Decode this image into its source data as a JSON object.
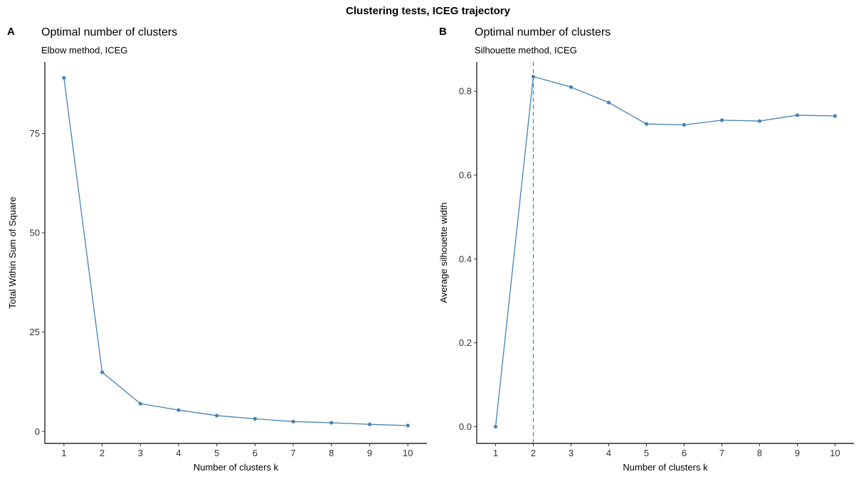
{
  "figure": {
    "title": "Clustering tests, ICEG trajectory"
  },
  "panels": [
    {
      "tag": "A",
      "title": "Optimal number of clusters",
      "subtitle": "Elbow method, ICEG"
    },
    {
      "tag": "B",
      "title": "Optimal number of clusters",
      "subtitle": "Silhouette method, ICEG"
    }
  ],
  "colors": {
    "series": "#4682B4",
    "axis": "#000000"
  },
  "chart_data": [
    {
      "type": "line",
      "x": [
        1,
        2,
        3,
        4,
        5,
        6,
        7,
        8,
        9,
        10
      ],
      "values": [
        89.0,
        14.9,
        7.0,
        5.4,
        4.0,
        3.2,
        2.5,
        2.2,
        1.8,
        1.5
      ],
      "xlabel": "Number of clusters k",
      "ylabel": "Total Within Sum of Square",
      "xlim": [
        0.5,
        10.5
      ],
      "ylim": [
        -3,
        93
      ],
      "xticks": [
        1,
        2,
        3,
        4,
        5,
        6,
        7,
        8,
        9,
        10
      ],
      "yticks": [
        0,
        25,
        50,
        75
      ],
      "grid": false,
      "markers": true
    },
    {
      "type": "line",
      "x": [
        1,
        2,
        3,
        4,
        5,
        6,
        7,
        8,
        9,
        10
      ],
      "values": [
        0.0,
        0.835,
        0.81,
        0.773,
        0.722,
        0.72,
        0.731,
        0.729,
        0.743,
        0.741
      ],
      "xlabel": "Number of clusters k",
      "ylabel": "Average silhouette width",
      "xlim": [
        0.5,
        10.5
      ],
      "ylim": [
        -0.04,
        0.87
      ],
      "xticks": [
        1,
        2,
        3,
        4,
        5,
        6,
        7,
        8,
        9,
        10
      ],
      "yticks": [
        "0.0",
        "0.2",
        "0.4",
        "0.6",
        "0.8"
      ],
      "grid": false,
      "markers": true,
      "vline": {
        "x": 2,
        "style": "dashed"
      }
    }
  ]
}
